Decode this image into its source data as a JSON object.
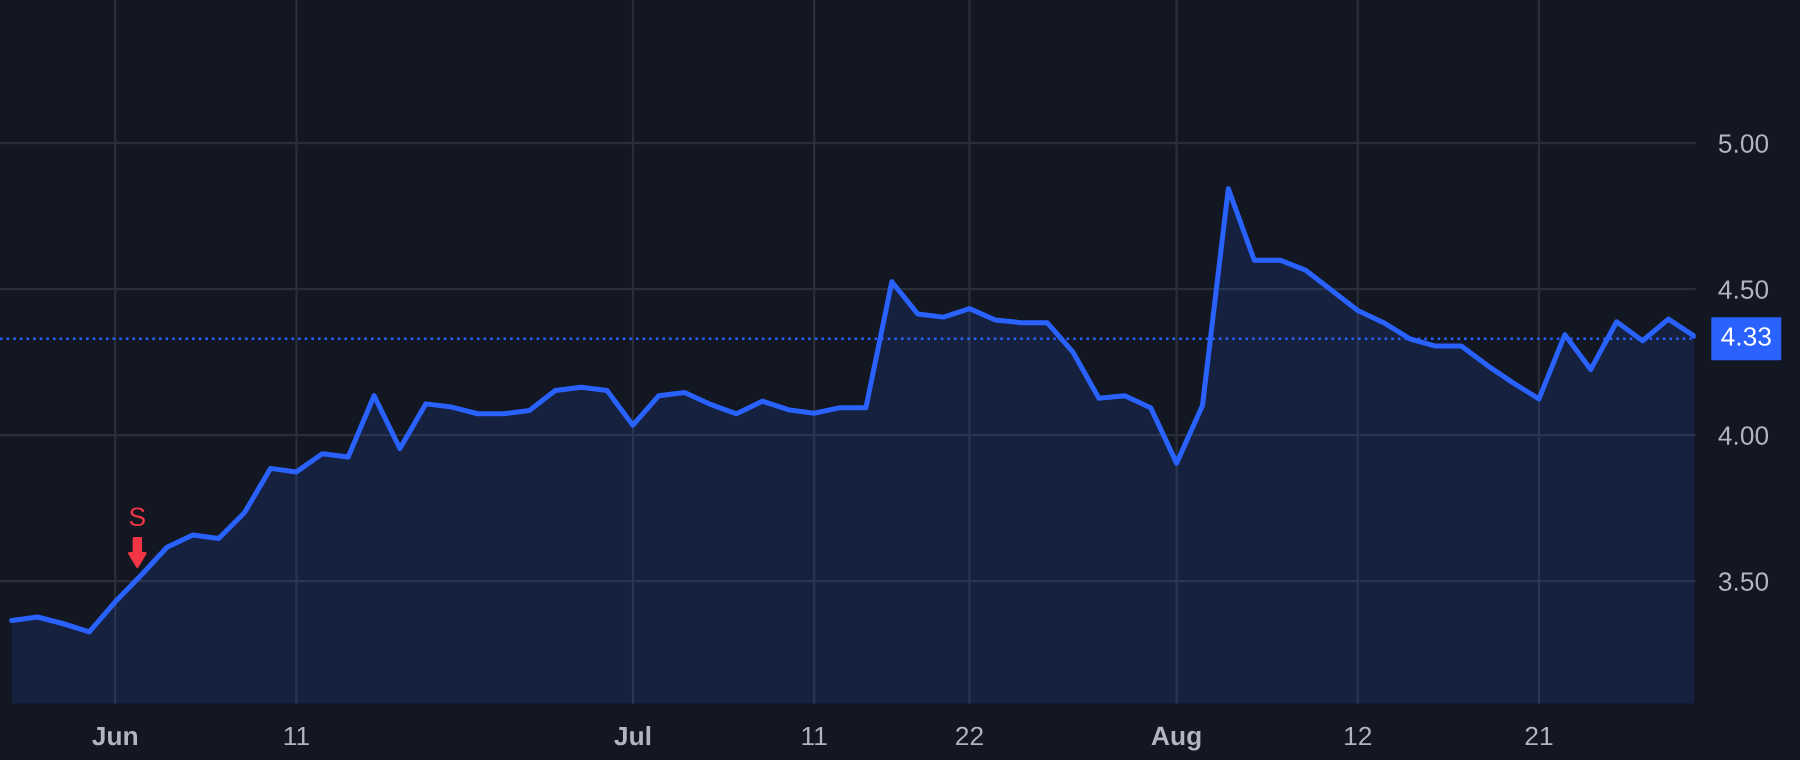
{
  "chart_data": {
    "type": "area",
    "categories": [
      null,
      null,
      null,
      null,
      "Jun",
      null,
      null,
      null,
      null,
      null,
      null,
      "11",
      null,
      null,
      null,
      null,
      null,
      null,
      null,
      null,
      null,
      null,
      null,
      null,
      "Jul",
      null,
      null,
      null,
      null,
      null,
      null,
      "11",
      null,
      null,
      null,
      null,
      null,
      "22",
      null,
      null,
      null,
      null,
      null,
      null,
      null,
      "Aug",
      null,
      null,
      null,
      null,
      null,
      null,
      "12",
      null,
      null,
      null,
      null,
      null,
      null,
      "21",
      null,
      null,
      null,
      null,
      null,
      null
    ],
    "series": [
      {
        "color": "#2962ff",
        "values": [
          3.365,
          3.377,
          3.354,
          3.326,
          3.429,
          3.52,
          3.616,
          3.658,
          3.646,
          3.735,
          3.886,
          3.874,
          3.936,
          3.925,
          4.135,
          3.954,
          4.107,
          4.096,
          4.073,
          4.073,
          4.084,
          4.153,
          4.164,
          4.153,
          4.034,
          4.135,
          4.146,
          4.105,
          4.073,
          4.116,
          4.087,
          4.075,
          4.094,
          4.094,
          4.525,
          4.415,
          4.404,
          4.433,
          4.394,
          4.385,
          4.385,
          4.284,
          4.126,
          4.135,
          4.094,
          3.904,
          4.101,
          4.844,
          4.599,
          4.599,
          4.564,
          4.495,
          4.427,
          4.385,
          4.33,
          4.305,
          4.305,
          4.239,
          4.179,
          4.124,
          4.344,
          4.225,
          4.388,
          4.323,
          4.397,
          4.339
        ]
      }
    ],
    "ylim": [
      3.08,
      5.49
    ],
    "yticks": [
      {
        "value": 3.5,
        "label": "3.50"
      },
      {
        "value": 4.0,
        "label": "4.00"
      },
      {
        "value": 4.5,
        "label": "4.50"
      },
      {
        "value": 5.0,
        "label": "5.00"
      }
    ],
    "grid": true,
    "ref_lines": [
      {
        "axis": "y",
        "value": 4.33,
        "label": "4.33",
        "color": "#2962ff",
        "line_style": "dotted"
      }
    ],
    "annotations": [
      "S"
    ]
  }
}
